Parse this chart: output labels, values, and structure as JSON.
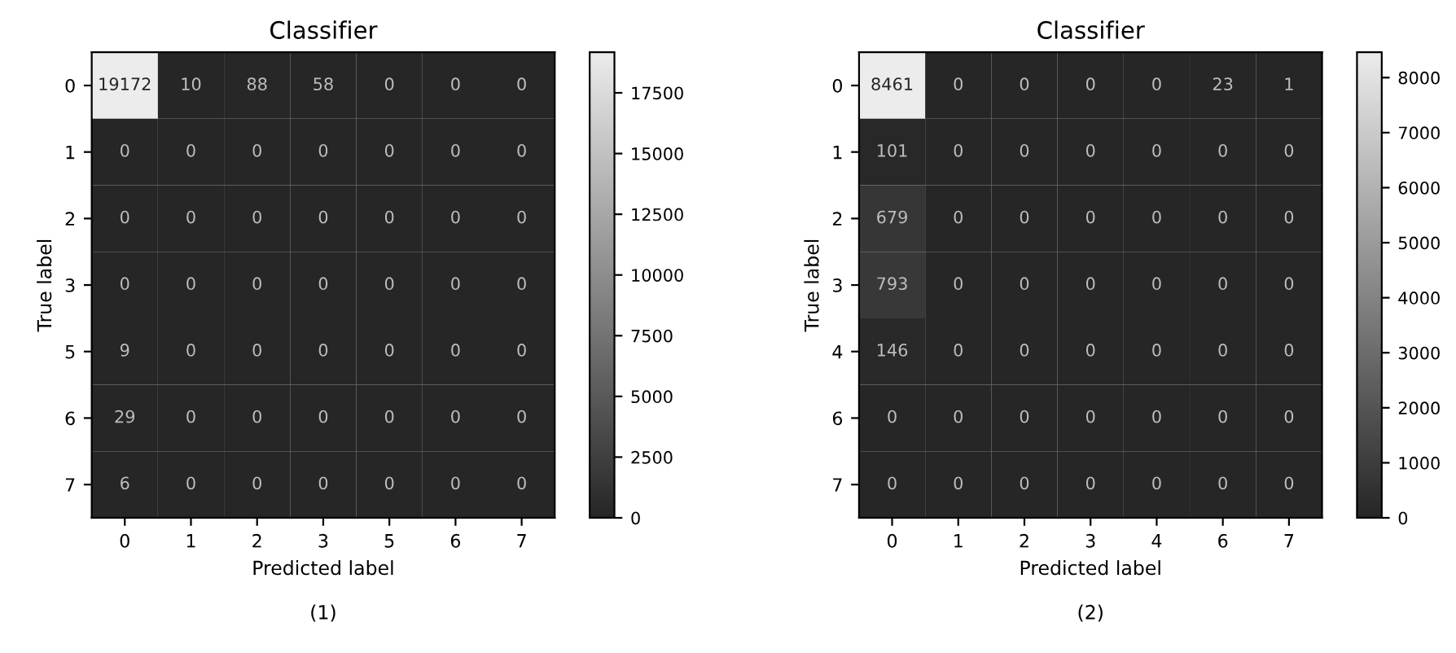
{
  "chart_data": [
    {
      "type": "heatmap",
      "title": "Classifier",
      "xlabel": "Predicted label",
      "ylabel": "True label",
      "categories": [
        "0",
        "1",
        "2",
        "3",
        "5",
        "6",
        "7"
      ],
      "y_categories": [
        "0",
        "1",
        "2",
        "3",
        "5",
        "6",
        "7"
      ],
      "cells": [
        [
          19172,
          10,
          88,
          58,
          0,
          0,
          0
        ],
        [
          0,
          0,
          0,
          0,
          0,
          0,
          0
        ],
        [
          0,
          0,
          0,
          0,
          0,
          0,
          0
        ],
        [
          0,
          0,
          0,
          0,
          0,
          0,
          0
        ],
        [
          9,
          0,
          0,
          0,
          0,
          0,
          0
        ],
        [
          29,
          0,
          0,
          0,
          0,
          0,
          0
        ],
        [
          6,
          0,
          0,
          0,
          0,
          0,
          0
        ]
      ],
      "clim": [
        0,
        19172
      ],
      "cticks": [
        0,
        2500,
        5000,
        7500,
        10000,
        12500,
        15000,
        17500
      ],
      "data_labels": true,
      "annotations": [
        "(1)"
      ]
    },
    {
      "type": "heatmap",
      "title": "Classifier",
      "xlabel": "Predicted label",
      "ylabel": "True label",
      "categories": [
        "0",
        "1",
        "2",
        "3",
        "4",
        "6",
        "7"
      ],
      "y_categories": [
        "0",
        "1",
        "2",
        "3",
        "4",
        "6",
        "7"
      ],
      "cells": [
        [
          8461,
          0,
          0,
          0,
          0,
          23,
          1
        ],
        [
          101,
          0,
          0,
          0,
          0,
          0,
          0
        ],
        [
          679,
          0,
          0,
          0,
          0,
          0,
          0
        ],
        [
          793,
          0,
          0,
          0,
          0,
          0,
          0
        ],
        [
          146,
          0,
          0,
          0,
          0,
          0,
          0
        ],
        [
          0,
          0,
          0,
          0,
          0,
          0,
          0
        ],
        [
          0,
          0,
          0,
          0,
          0,
          0,
          0
        ]
      ],
      "clim": [
        0,
        8461
      ],
      "cticks": [
        0,
        1000,
        2000,
        3000,
        4000,
        5000,
        6000,
        7000,
        8000
      ],
      "data_labels": true,
      "annotations": [
        "(2)"
      ]
    }
  ]
}
